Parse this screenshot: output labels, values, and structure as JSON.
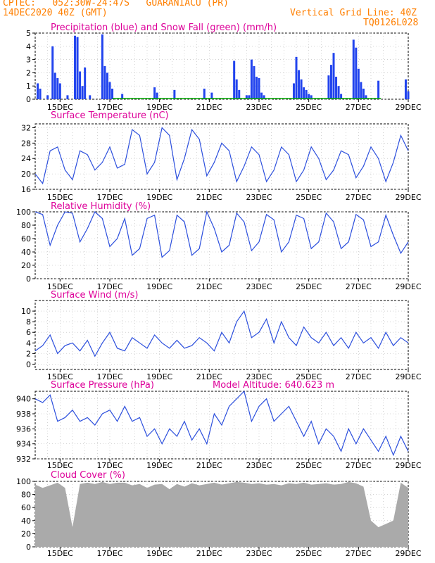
{
  "header": {
    "line1": "CPTEC:   052:30W-24:47S   GUARANIACU (PR)",
    "line2": "14DEC2020 40Z (GMT)",
    "grid_note": "Vertical Grid Line: 40Z",
    "code": "TQ0126L028"
  },
  "colors": {
    "header": "#ff7f00",
    "title": "#dd0099",
    "line": "#2c4fdd",
    "bar": "#2244ee",
    "snow": "#00aa00",
    "cloud": "#aaaaaa"
  },
  "chart_data": [
    {
      "type": "bar",
      "title": "Precipitation (blue) and Snow Fall (green) (mm/h)",
      "x_tick_labels": [
        "15DEC",
        "17DEC",
        "19DEC",
        "21DEC",
        "23DEC",
        "25DEC",
        "27DEC",
        "29DEC"
      ],
      "ylim": [
        0,
        5
      ],
      "yticks": [
        0,
        1,
        2,
        3,
        4,
        5
      ],
      "x_days": [
        14.1,
        14.2,
        14.5,
        14.7,
        14.8,
        14.9,
        15.0,
        15.3,
        15.6,
        15.7,
        15.8,
        15.9,
        16.0,
        16.2,
        16.7,
        16.8,
        16.9,
        17.0,
        17.1,
        17.5,
        18.8,
        18.9,
        19.6,
        20.8,
        21.1,
        22.0,
        22.1,
        22.2,
        22.5,
        22.6,
        22.7,
        22.8,
        22.9,
        23.0,
        23.1,
        23.2,
        24.4,
        24.5,
        24.6,
        24.7,
        24.8,
        24.9,
        25.0,
        25.1,
        25.8,
        25.9,
        26.0,
        26.1,
        26.2,
        26.3,
        26.8,
        26.9,
        27.0,
        27.1,
        27.2,
        27.3,
        27.8,
        28.9,
        29.0
      ],
      "precip": [
        1.2,
        0.8,
        0.3,
        4.0,
        2.0,
        1.6,
        1.2,
        0.3,
        4.8,
        4.7,
        2.1,
        1.0,
        2.4,
        0.3,
        4.9,
        2.5,
        2.0,
        1.3,
        0.8,
        0.4,
        0.9,
        0.5,
        0.7,
        0.8,
        0.5,
        2.9,
        1.5,
        0.7,
        0.3,
        0.3,
        3.0,
        2.5,
        1.7,
        1.6,
        0.5,
        0.3,
        1.2,
        3.2,
        2.2,
        1.5,
        0.9,
        0.7,
        0.4,
        0.3,
        1.8,
        2.6,
        3.5,
        1.7,
        1.0,
        0.4,
        4.5,
        3.9,
        2.3,
        1.3,
        0.8,
        0.3,
        1.4,
        1.5,
        0.6
      ],
      "snow": [
        0,
        0,
        0,
        0,
        0,
        0,
        0,
        0,
        0,
        0,
        0,
        0,
        0,
        0,
        0,
        0,
        0,
        0,
        0,
        0,
        0,
        0,
        0,
        0,
        0,
        0,
        0,
        0,
        0,
        0,
        0,
        0,
        0,
        0,
        0,
        0,
        0,
        0,
        0,
        0,
        0,
        0,
        0,
        0,
        0,
        0,
        0,
        0,
        0,
        0,
        0,
        0,
        0,
        0,
        0,
        0,
        0,
        0,
        0
      ]
    },
    {
      "type": "line",
      "title": "Surface Temperature (nC)",
      "x_tick_labels": [
        "15DEC",
        "17DEC",
        "19DEC",
        "21DEC",
        "23DEC",
        "25DEC",
        "27DEC",
        "29DEC"
      ],
      "ylim": [
        16,
        33
      ],
      "yticks": [
        16,
        20,
        24,
        28,
        32
      ],
      "x_days": [
        14.0,
        14.3,
        14.6,
        14.9,
        15.2,
        15.5,
        15.8,
        16.1,
        16.4,
        16.7,
        17.0,
        17.3,
        17.6,
        17.9,
        18.2,
        18.5,
        18.8,
        19.1,
        19.4,
        19.7,
        20.0,
        20.3,
        20.6,
        20.9,
        21.2,
        21.5,
        21.8,
        22.1,
        22.4,
        22.7,
        23.0,
        23.3,
        23.6,
        23.9,
        24.2,
        24.5,
        24.8,
        25.1,
        25.4,
        25.7,
        26.0,
        26.3,
        26.6,
        26.9,
        27.2,
        27.5,
        27.8,
        28.1,
        28.4,
        28.7,
        29.0
      ],
      "values": [
        20,
        17.5,
        26,
        27,
        21,
        18.5,
        26,
        25,
        21,
        23,
        27,
        21.5,
        22.5,
        31.5,
        30,
        20,
        23,
        32,
        30,
        18.5,
        24,
        31.5,
        29,
        19.5,
        23,
        28,
        26,
        18,
        22,
        27,
        25,
        18,
        21,
        27,
        25,
        18,
        21,
        27,
        24,
        18.5,
        21,
        26,
        25,
        19,
        22,
        27,
        24,
        18,
        23,
        30,
        26
      ]
    },
    {
      "type": "line",
      "title": "Relative Humidity (%)",
      "x_tick_labels": [
        "15DEC",
        "17DEC",
        "19DEC",
        "21DEC",
        "23DEC",
        "25DEC",
        "27DEC",
        "29DEC"
      ],
      "ylim": [
        0,
        100
      ],
      "yticks": [
        0,
        20,
        40,
        60,
        80,
        100
      ],
      "x_days": [
        14.0,
        14.3,
        14.6,
        14.9,
        15.2,
        15.5,
        15.8,
        16.1,
        16.4,
        16.7,
        17.0,
        17.3,
        17.6,
        17.9,
        18.2,
        18.5,
        18.8,
        19.1,
        19.4,
        19.7,
        20.0,
        20.3,
        20.6,
        20.9,
        21.2,
        21.5,
        21.8,
        22.1,
        22.4,
        22.7,
        23.0,
        23.3,
        23.6,
        23.9,
        24.2,
        24.5,
        24.8,
        25.1,
        25.4,
        25.7,
        26.0,
        26.3,
        26.6,
        26.9,
        27.2,
        27.5,
        27.8,
        28.1,
        28.4,
        28.7,
        29.0
      ],
      "values": [
        100,
        96,
        50,
        80,
        100,
        98,
        55,
        75,
        100,
        90,
        48,
        60,
        90,
        35,
        45,
        90,
        95,
        32,
        42,
        95,
        85,
        35,
        45,
        100,
        75,
        40,
        50,
        98,
        85,
        42,
        55,
        96,
        88,
        40,
        55,
        95,
        90,
        45,
        55,
        98,
        85,
        45,
        55,
        96,
        88,
        48,
        55,
        95,
        65,
        38,
        55
      ]
    },
    {
      "type": "line",
      "title": "Surface Wind (m/s)",
      "x_tick_labels": [
        "15DEC",
        "17DEC",
        "19DEC",
        "21DEC",
        "23DEC",
        "25DEC",
        "27DEC",
        "29DEC"
      ],
      "ylim": [
        -1,
        12
      ],
      "yticks": [
        0,
        2,
        4,
        6,
        8,
        10
      ],
      "x_days": [
        14.0,
        14.3,
        14.6,
        14.9,
        15.2,
        15.5,
        15.8,
        16.1,
        16.4,
        16.7,
        17.0,
        17.3,
        17.6,
        17.9,
        18.2,
        18.5,
        18.8,
        19.1,
        19.4,
        19.7,
        20.0,
        20.3,
        20.6,
        20.9,
        21.2,
        21.5,
        21.8,
        22.1,
        22.4,
        22.7,
        23.0,
        23.3,
        23.6,
        23.9,
        24.2,
        24.5,
        24.8,
        25.1,
        25.4,
        25.7,
        26.0,
        26.3,
        26.6,
        26.9,
        27.2,
        27.5,
        27.8,
        28.1,
        28.4,
        28.7,
        29.0
      ],
      "values": [
        2.5,
        3.5,
        5.5,
        2,
        3.5,
        4,
        2.5,
        4.5,
        1.5,
        4,
        6,
        3,
        2.5,
        5,
        4,
        3,
        5.5,
        4,
        3,
        4.5,
        3,
        3.5,
        5,
        4,
        2.5,
        6,
        4,
        8,
        10,
        5,
        6,
        8.5,
        4,
        8,
        5,
        3.5,
        7,
        5,
        4,
        6,
        3.5,
        5,
        3,
        6,
        4,
        5,
        3,
        6,
        3.5,
        5,
        4
      ]
    },
    {
      "type": "line",
      "title": "Surface Pressure (hPa)",
      "subtitle": "Model Altitude: 640.623 m",
      "x_tick_labels": [
        "15DEC",
        "17DEC",
        "19DEC",
        "21DEC",
        "23DEC",
        "25DEC",
        "27DEC",
        "29DEC"
      ],
      "ylim": [
        932,
        941
      ],
      "yticks": [
        932,
        934,
        936,
        938,
        940
      ],
      "x_days": [
        14.0,
        14.3,
        14.6,
        14.9,
        15.2,
        15.5,
        15.8,
        16.1,
        16.4,
        16.7,
        17.0,
        17.3,
        17.6,
        17.9,
        18.2,
        18.5,
        18.8,
        19.1,
        19.4,
        19.7,
        20.0,
        20.3,
        20.6,
        20.9,
        21.2,
        21.5,
        21.8,
        22.1,
        22.4,
        22.7,
        23.0,
        23.3,
        23.6,
        23.9,
        24.2,
        24.5,
        24.8,
        25.1,
        25.4,
        25.7,
        26.0,
        26.3,
        26.6,
        26.9,
        27.2,
        27.5,
        27.8,
        28.1,
        28.4,
        28.7,
        29.0
      ],
      "values": [
        940,
        939.5,
        940.5,
        937,
        937.5,
        938.5,
        937,
        937.5,
        936.5,
        938,
        938.5,
        937,
        939,
        937,
        937.5,
        935,
        936,
        934,
        936,
        935,
        937,
        934.5,
        936,
        934,
        938,
        936.5,
        939,
        940,
        941,
        937,
        939,
        940,
        937,
        938,
        939,
        937,
        935,
        937,
        934,
        936,
        935,
        933,
        936,
        934,
        936,
        934.5,
        933,
        935,
        932.5,
        935,
        933
      ]
    },
    {
      "type": "area",
      "title": "Cloud Cover (%)",
      "x_tick_labels": [
        "15DEC",
        "17DEC",
        "19DEC",
        "21DEC",
        "23DEC",
        "25DEC",
        "27DEC",
        "29DEC"
      ],
      "ylim": [
        0,
        100
      ],
      "yticks": [
        0,
        20,
        40,
        60,
        80,
        100
      ],
      "x_days": [
        14.0,
        14.3,
        14.6,
        14.9,
        15.2,
        15.5,
        15.8,
        16.1,
        16.4,
        16.7,
        17.0,
        17.3,
        17.6,
        17.9,
        18.2,
        18.5,
        18.8,
        19.1,
        19.4,
        19.7,
        20.0,
        20.3,
        20.6,
        20.9,
        21.2,
        21.5,
        21.8,
        22.1,
        22.4,
        22.7,
        23.0,
        23.3,
        23.6,
        23.9,
        24.2,
        24.5,
        24.8,
        25.1,
        25.4,
        25.7,
        26.0,
        26.3,
        26.6,
        26.9,
        27.2,
        27.5,
        27.8,
        28.1,
        28.4,
        28.7,
        29.0
      ],
      "values": [
        95,
        90,
        94,
        98,
        90,
        30,
        96,
        98,
        96,
        99,
        96,
        98,
        98,
        94,
        96,
        90,
        95,
        96,
        88,
        96,
        92,
        97,
        94,
        96,
        98,
        95,
        97,
        99,
        98,
        96,
        97,
        95,
        96,
        94,
        97,
        96,
        98,
        95,
        96,
        97,
        95,
        96,
        99,
        97,
        92,
        40,
        30,
        35,
        40,
        98,
        90
      ]
    }
  ]
}
